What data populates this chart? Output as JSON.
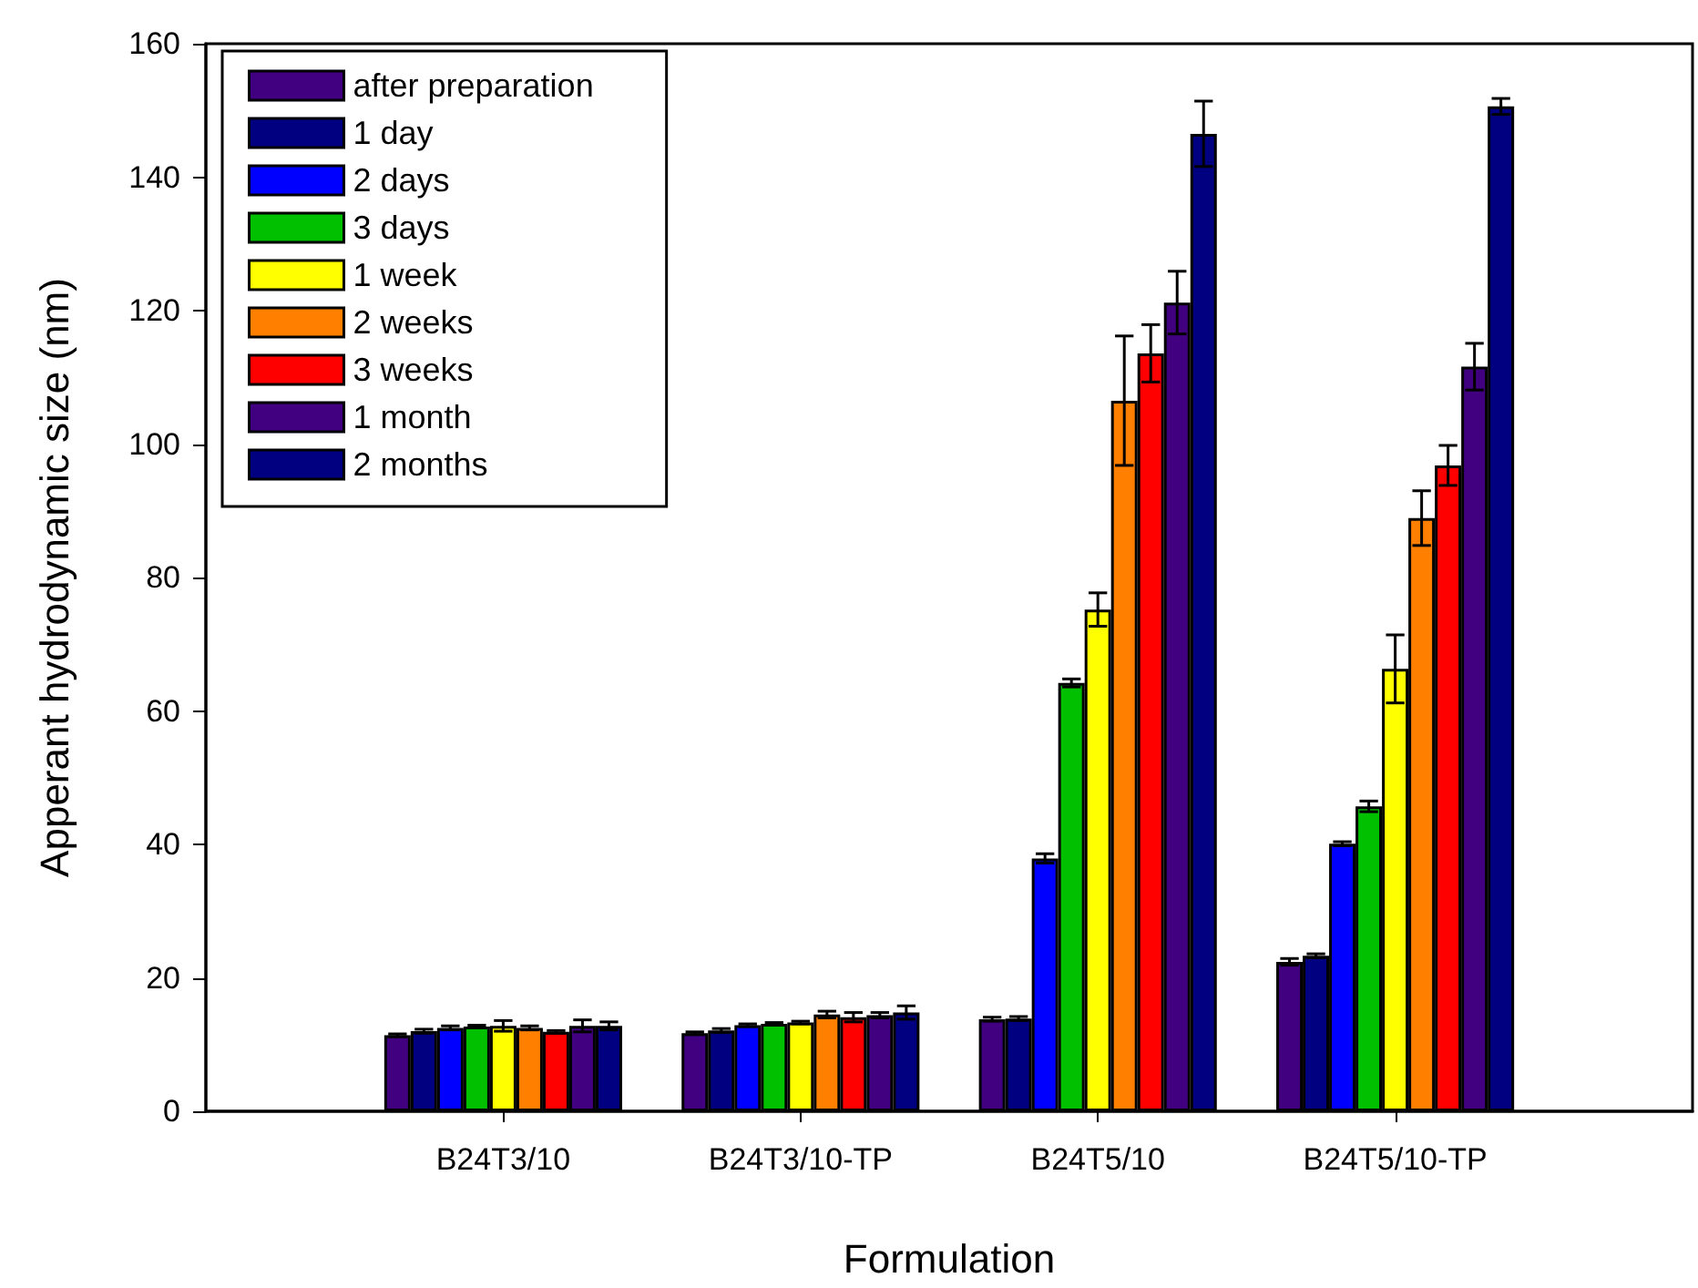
{
  "chart_data": {
    "type": "bar",
    "xlabel": "Formulation",
    "ylabel": "Apperant hydrodynamic size (nm)",
    "categories": [
      null,
      "B24T3/10",
      "B24T3/10-TP",
      "B24T5/10",
      "B24T5/10-TP",
      null
    ],
    "ylim": [
      0,
      160
    ],
    "yticks": [
      0,
      20,
      40,
      60,
      80,
      100,
      120,
      140,
      160
    ],
    "grid": false,
    "legend": "top left",
    "series": [
      {
        "name": "after preparation",
        "color": "#400080",
        "values": [
          null,
          11.4,
          11.7,
          13.8,
          22.4,
          null
        ],
        "errors": [
          null,
          0.2,
          0.2,
          0.3,
          0.5,
          null
        ]
      },
      {
        "name": "1 day",
        "color": "#000080",
        "values": [
          null,
          12.0,
          12.1,
          13.9,
          23.3,
          null
        ],
        "errors": [
          null,
          0.3,
          0.3,
          0.3,
          0.3,
          null
        ]
      },
      {
        "name": "2 days",
        "color": "#0000ff",
        "values": [
          null,
          12.5,
          12.9,
          37.9,
          40.1,
          null
        ],
        "errors": [
          null,
          0.3,
          0.2,
          0.7,
          0.3,
          null
        ]
      },
      {
        "name": "3 days",
        "color": "#00c000",
        "values": [
          null,
          12.7,
          13.1,
          64.2,
          45.7,
          null
        ],
        "errors": [
          null,
          0.2,
          0.2,
          0.6,
          0.8,
          null
        ]
      },
      {
        "name": "1 week",
        "color": "#ffff00",
        "values": [
          null,
          12.8,
          13.3,
          75.2,
          66.3,
          null
        ],
        "errors": [
          null,
          0.8,
          0.2,
          2.5,
          5.1,
          null
        ]
      },
      {
        "name": "2 weeks",
        "color": "#ff8000",
        "values": [
          null,
          12.5,
          14.5,
          106.5,
          88.9,
          null
        ],
        "errors": [
          null,
          0.3,
          0.5,
          9.7,
          4.1,
          null
        ]
      },
      {
        "name": "3 weeks",
        "color": "#ff0000",
        "values": [
          null,
          11.9,
          14.1,
          113.6,
          96.8,
          null
        ],
        "errors": [
          null,
          0.2,
          0.7,
          4.3,
          3.0,
          null
        ]
      },
      {
        "name": "1 month",
        "color": "#400080",
        "values": [
          null,
          12.8,
          14.4,
          121.2,
          111.6,
          null
        ],
        "errors": [
          null,
          0.9,
          0.4,
          4.7,
          3.5,
          null
        ]
      },
      {
        "name": "2 months",
        "color": "#000080",
        "values": [
          null,
          12.8,
          14.8,
          146.5,
          150.6,
          null
        ],
        "errors": [
          null,
          0.6,
          1.0,
          4.9,
          1.2,
          null
        ]
      }
    ]
  }
}
